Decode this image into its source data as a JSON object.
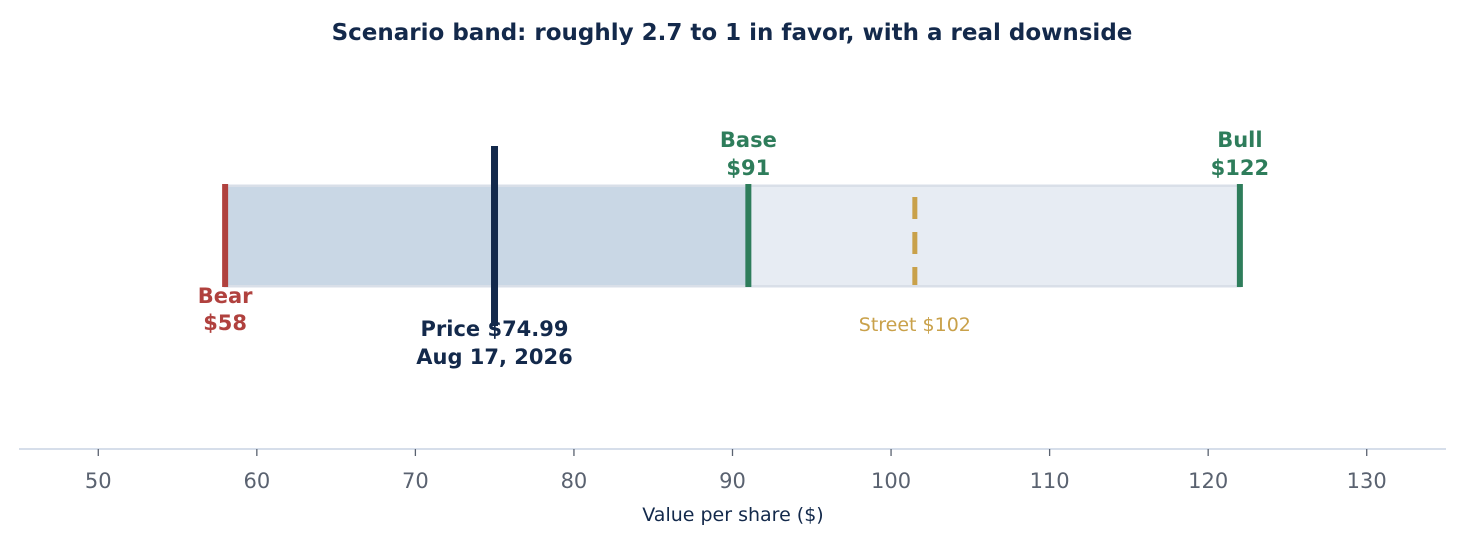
{
  "chart_data": {
    "type": "scenario-band",
    "title": "Scenario band: roughly 2.7 to 1 in favor, with a real downside",
    "xlabel": "Value per share ($)",
    "xlim": [
      45,
      135
    ],
    "xticks": [
      50,
      60,
      70,
      80,
      90,
      100,
      110,
      120,
      130
    ],
    "xtick_labels": [
      "50",
      "60",
      "70",
      "80",
      "90",
      "100",
      "110",
      "120",
      "130"
    ],
    "band": {
      "low": 58,
      "mid": 91,
      "high": 122
    },
    "markers": [
      {
        "name": "Bear",
        "value": 58,
        "label_top": "Bear",
        "label_bottom": "$58",
        "color": "#b0413e"
      },
      {
        "name": "Base",
        "value": 91,
        "label_top": "Base",
        "label_bottom": "$91",
        "color": "#2e7d5b"
      },
      {
        "name": "Bull",
        "value": 122,
        "label_top": "Bull",
        "label_bottom": "$122",
        "color": "#2e7d5b"
      }
    ],
    "price": {
      "value": 74.99,
      "label_top": "Price $74.99",
      "label_bottom": "Aug 17, 2026",
      "color": "#13294b"
    },
    "street": {
      "value": 101.5,
      "label": "Street $102",
      "color": "#c9a14a"
    },
    "colors": {
      "band_low": "#c9d7e5",
      "band_high": "#e7ecf3",
      "band_edge": "#d9dfe8",
      "axis": "#c9d3e3",
      "tick_text": "#5a6270",
      "title": "#13294b"
    }
  }
}
